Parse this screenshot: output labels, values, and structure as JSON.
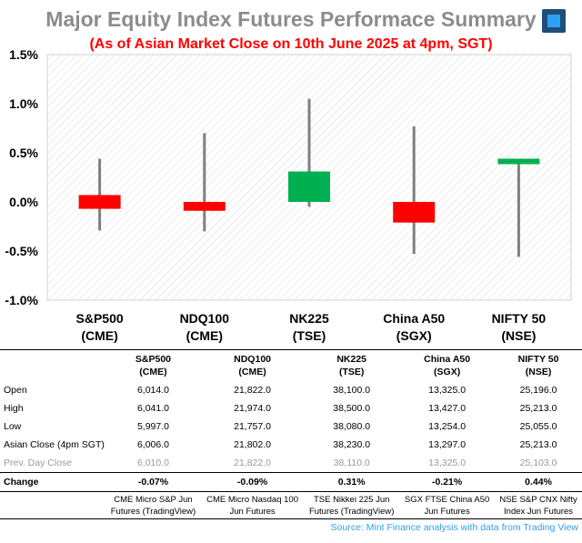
{
  "title": "Major Equity Index Futures Performace Summary",
  "subtitle": "(As of Asian Market Close on 10th June 2025 at 4pm, SGT)",
  "colors": {
    "up": "#00b050",
    "down": "#ff0000",
    "wick": "#808080",
    "title": "#8c8c8c",
    "source": "#2ea0f0"
  },
  "chart_data": {
    "type": "candlestick",
    "categories": [
      "S&P500 (CME)",
      "NDQ100 (CME)",
      "NK225 (TSE)",
      "China A50 (SGX)",
      "NIFTY 50 (NSE)"
    ],
    "category_lines": [
      [
        "S&P500",
        "(CME)"
      ],
      [
        "NDQ100",
        "(CME)"
      ],
      [
        "NK225",
        "(TSE)"
      ],
      [
        "China A50",
        "(SGX)"
      ],
      [
        "NIFTY 50",
        "(NSE)"
      ]
    ],
    "candles": [
      {
        "open": 0.07,
        "high": 0.44,
        "low": -0.29,
        "close": -0.07
      },
      {
        "open": 0.0,
        "high": 0.7,
        "low": -0.3,
        "close": -0.09
      },
      {
        "open": 0.0,
        "high": 1.05,
        "low": -0.05,
        "close": 0.31
      },
      {
        "open": 0.0,
        "high": 0.77,
        "low": -0.53,
        "close": -0.21
      },
      {
        "open": 0.44,
        "high": 0.44,
        "low": -0.56,
        "close": 0.44
      }
    ],
    "ylim": [
      -1.0,
      1.5
    ],
    "yticks": [
      -1.0,
      -0.5,
      0.0,
      0.5,
      1.0,
      1.5
    ],
    "ytick_labels": [
      "-1.0%",
      "-0.5%",
      "0.0%",
      "0.5%",
      "1.0%",
      "1.5%"
    ],
    "grid": false
  },
  "table": {
    "headers": [
      [
        "S&P500",
        "(CME)"
      ],
      [
        "NDQ100",
        "(CME)"
      ],
      [
        "NK225",
        "(TSE)"
      ],
      [
        "China A50",
        "(SGX)"
      ],
      [
        "NIFTY 50",
        "(NSE)"
      ]
    ],
    "rows": [
      {
        "label": "Open",
        "values": [
          "6,014.0",
          "21,822.0",
          "38,100.0",
          "13,325.0",
          "25,196.0"
        ]
      },
      {
        "label": "High",
        "values": [
          "6,041.0",
          "21,974.0",
          "38,500.0",
          "13,427.0",
          "25,213.0"
        ]
      },
      {
        "label": "Low",
        "values": [
          "5,997.0",
          "21,757.0",
          "38,080.0",
          "13,254.0",
          "25,055.0"
        ]
      },
      {
        "label": "Asian Close (4pm SGT)",
        "values": [
          "6,006.0",
          "21,802.0",
          "38,230.0",
          "13,297.0",
          "25,213.0"
        ]
      },
      {
        "label": "Prev. Day Close",
        "values": [
          "6,010.0",
          "21,822.0",
          "38,110.0",
          "13,325.0",
          "25,103.0"
        ]
      }
    ],
    "change": {
      "label": "Change",
      "values": [
        "-0.07%",
        "-0.09%",
        "0.31%",
        "-0.21%",
        "0.44%"
      ]
    },
    "notes": [
      [
        "CME Micro S&P Jun",
        "Futures (TradingView)"
      ],
      [
        "CME Micro Nasdaq 100",
        "Jun Futures"
      ],
      [
        "TSE Nikkei 225 Jun",
        "Futures (TradingView)"
      ],
      [
        "SGX FTSE China A50",
        "Jun Futures"
      ],
      [
        "NSE S&P CNX Nifty",
        "Index Jun Futures"
      ]
    ]
  },
  "source": "Source: Mint Finance analysis with data from Trading View"
}
